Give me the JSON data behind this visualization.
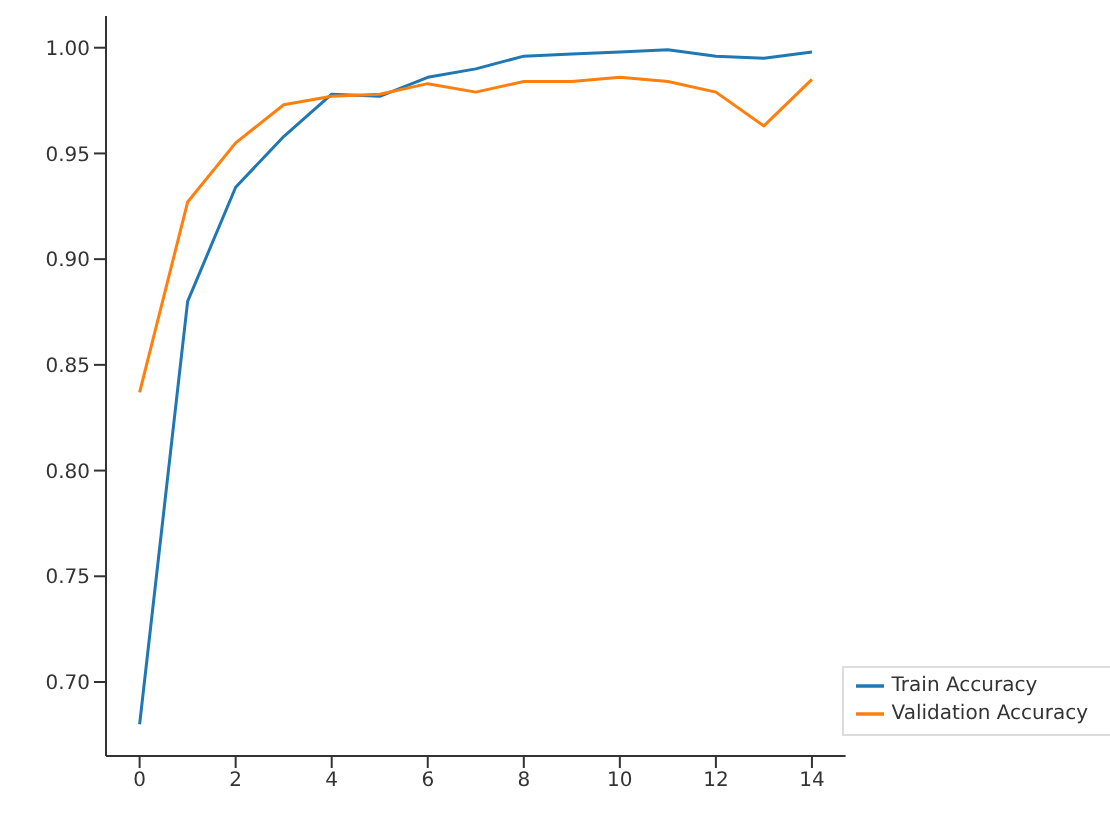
{
  "chart_data": {
    "type": "line",
    "x": [
      0,
      1,
      2,
      3,
      4,
      5,
      6,
      7,
      8,
      9,
      10,
      11,
      12,
      13,
      14
    ],
    "series": [
      {
        "name": "Train Accuracy",
        "color": "#1f77b4",
        "values": [
          0.68,
          0.88,
          0.934,
          0.958,
          0.978,
          0.977,
          0.986,
          0.99,
          0.996,
          0.997,
          0.998,
          0.999,
          0.996,
          0.995,
          0.998
        ]
      },
      {
        "name": "Validation Accuracy",
        "color": "#ff7f0e",
        "values": [
          0.837,
          0.927,
          0.955,
          0.973,
          0.977,
          0.978,
          0.983,
          0.979,
          0.984,
          0.984,
          0.986,
          0.984,
          0.979,
          0.963,
          0.985
        ]
      }
    ],
    "xlim": [
      -0.7,
      14.7
    ],
    "xticks": [
      0,
      2,
      4,
      6,
      8,
      10,
      12,
      14
    ],
    "ylim": [
      0.665,
      1.015
    ],
    "yticks": [
      {
        "value": 0.7,
        "label": "0.70"
      },
      {
        "value": 0.75,
        "label": "0.75"
      },
      {
        "value": 0.8,
        "label": "0.80"
      },
      {
        "value": 0.85,
        "label": "0.85"
      },
      {
        "value": 0.9,
        "label": "0.90"
      },
      {
        "value": 0.95,
        "label": "0.95"
      },
      {
        "value": 1.0,
        "label": "1.00"
      }
    ],
    "grid": false,
    "legend": "bottom right",
    "marker": "none",
    "line_style": "solid"
  }
}
